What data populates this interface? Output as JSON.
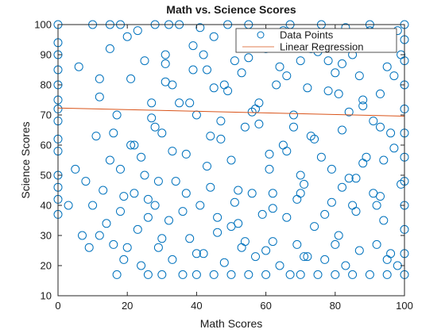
{
  "chart_data": {
    "type": "scatter",
    "title": "Math vs. Science Scores",
    "xlabel": "Math Scores",
    "ylabel": "Science Scores",
    "xlim": [
      0,
      100
    ],
    "ylim": [
      10,
      100
    ],
    "xticks": [
      0,
      20,
      40,
      60,
      80,
      100
    ],
    "yticks": [
      10,
      20,
      30,
      40,
      50,
      60,
      70,
      80,
      90,
      100
    ],
    "grid": false,
    "legend_position": "top-right",
    "series": [
      {
        "name": "Data Points",
        "kind": "scatter",
        "marker": "open-circle",
        "color": "#0072BD",
        "x": [
          0,
          0,
          0,
          0,
          0,
          0,
          0,
          0,
          0,
          0,
          0,
          0,
          0,
          0,
          3,
          5,
          6,
          7,
          8,
          9,
          10,
          10,
          11,
          12,
          12,
          13,
          14,
          15,
          15,
          16,
          17,
          17,
          18,
          18,
          19,
          20,
          21,
          22,
          23,
          24,
          25,
          25,
          26,
          27,
          28,
          28,
          29,
          30,
          30,
          31,
          32,
          33,
          33,
          35,
          36,
          37,
          38,
          39,
          40,
          40,
          41,
          42,
          43,
          44,
          45,
          45,
          46,
          47,
          48,
          49,
          50,
          50,
          51,
          52,
          53,
          54,
          55,
          55,
          56,
          57,
          58,
          59,
          60,
          60,
          61,
          62,
          63,
          64,
          65,
          65,
          66,
          67,
          68,
          69,
          70,
          70,
          71,
          72,
          73,
          74,
          75,
          75,
          76,
          77,
          78,
          79,
          80,
          80,
          81,
          82,
          83,
          84,
          85,
          85,
          86,
          87,
          88,
          89,
          90,
          90,
          91,
          92,
          93,
          94,
          95,
          95,
          96,
          97,
          98,
          99,
          100,
          100,
          100,
          100,
          100,
          100,
          100,
          100,
          100,
          100,
          100,
          100,
          18,
          19,
          22,
          26,
          29,
          33,
          37,
          44,
          50,
          58,
          62,
          66,
          70,
          74,
          82,
          88,
          92,
          96,
          12,
          16,
          21,
          27,
          31,
          35,
          42,
          47,
          53,
          57,
          63,
          68,
          72,
          78,
          84,
          89,
          93,
          97,
          24,
          34,
          43,
          52,
          61,
          69,
          79,
          86,
          94,
          28,
          38,
          48,
          56,
          64,
          73,
          81,
          87,
          91,
          15,
          23,
          32,
          41,
          49,
          59,
          67,
          76,
          83,
          90,
          98,
          20,
          30,
          40,
          54,
          60,
          71,
          80,
          95,
          26,
          36,
          46,
          51,
          62,
          70,
          77,
          85,
          93,
          31,
          39,
          45,
          55,
          66,
          75,
          82,
          88,
          99
        ],
        "y": [
          100,
          94,
          90,
          85,
          80,
          75,
          72,
          68,
          62,
          58,
          50,
          46,
          42,
          37,
          40,
          52,
          86,
          30,
          48,
          26,
          100,
          40,
          63,
          30,
          82,
          45,
          34,
          92,
          55,
          27,
          17,
          70,
          100,
          38,
          22,
          96,
          60,
          44,
          32,
          20,
          88,
          50,
          17,
          74,
          100,
          40,
          26,
          17,
          64,
          90,
          35,
          22,
          80,
          100,
          17,
          57,
          29,
          93,
          17,
          70,
          40,
          24,
          85,
          46,
          17,
          96,
          31,
          62,
          21,
          78,
          17,
          55,
          88,
          34,
          26,
          66,
          17,
          100,
          44,
          23,
          74,
          37,
          17,
          92,
          52,
          28,
          80,
          20,
          60,
          98,
          36,
          17,
          70,
          27,
          17,
          88,
          47,
          23,
          63,
          33,
          17,
          95,
          56,
          22,
          78,
          41,
          17,
          84,
          30,
          65,
          20,
          49,
          17,
          90,
          38,
          25,
          73,
          56,
          17,
          98,
          44,
          27,
          66,
          35,
          17,
          86,
          24,
          59,
          20,
          47,
          100,
          95,
          88,
          80,
          72,
          64,
          56,
          48,
          40,
          32,
          24,
          17,
          52,
          43,
          60,
          36,
          48,
          58,
          44,
          63,
          33,
          67,
          44,
          58,
          50,
          62,
          46,
          54,
          40,
          64,
          76,
          64,
          82,
          69,
          87,
          74,
          90,
          68,
          84,
          72,
          94,
          66,
          79,
          88,
          71,
          96,
          77,
          83,
          56,
          48,
          53,
          45,
          57,
          42,
          52,
          49,
          55,
          66,
          74,
          80,
          71,
          86,
          92,
          77,
          83,
          68,
          100,
          98,
          100,
          99,
          100,
          97,
          100,
          100,
          99,
          100,
          98,
          26,
          29,
          24,
          28,
          25,
          23,
          27,
          22,
          42,
          38,
          36,
          41,
          39,
          44,
          37,
          40,
          43,
          81,
          85,
          79,
          89,
          83,
          91,
          87,
          75,
          90
        ]
      },
      {
        "name": "Linear Regression",
        "kind": "line",
        "color": "#D95319",
        "x": [
          0,
          100
        ],
        "y": [
          72.3,
          69.6
        ]
      }
    ]
  }
}
